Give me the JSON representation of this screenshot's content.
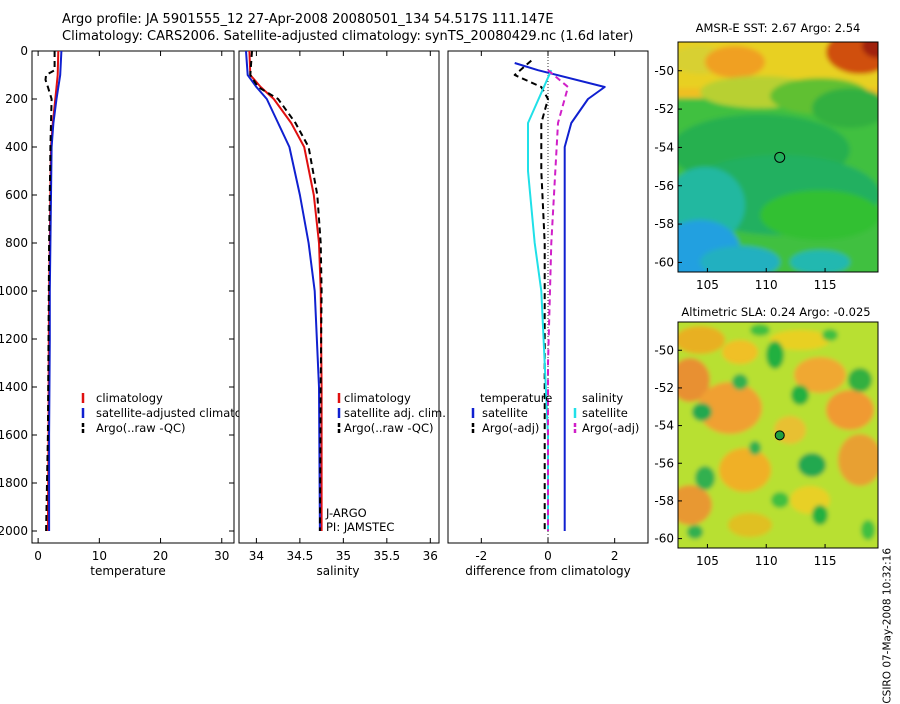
{
  "header": {
    "line1": "Argo profile: JA 5901555_12 27-Apr-2008 20080501_134 54.517S 111.147E",
    "line2": "Climatology: CARS2006. Satellite-adjusted climatology: synTS_20080429.nc (1.6d later)"
  },
  "footer_stamp": "CSIRO 07-May-2008 10:32:16",
  "colors": {
    "climatology": "#e01010",
    "satellite": "#1020d0",
    "argo": "#000000",
    "cyan": "#20e0e8",
    "magenta": "#d020c8"
  },
  "chart_data": [
    {
      "type": "line",
      "name": "temperature-profile",
      "xlabel": "temperature",
      "xlim": [
        -1,
        32
      ],
      "ylim": [
        2050,
        0
      ],
      "xticks": [
        0,
        10,
        20,
        30
      ],
      "yticks": [
        0,
        200,
        400,
        600,
        800,
        1000,
        1200,
        1400,
        1600,
        1800,
        2000
      ],
      "legend": [
        "climatology",
        "satellite-adjusted climatology",
        "Argo(..raw -QC)"
      ],
      "series": [
        {
          "name": "climatology",
          "color": "#e01010",
          "dash": "",
          "x": [
            3.3,
            3.2,
            2.8,
            2.4,
            2.1,
            2.0,
            1.9,
            1.8,
            1.75,
            1.7,
            1.6
          ],
          "y": [
            0,
            100,
            200,
            300,
            400,
            600,
            800,
            1000,
            1200,
            1600,
            2000
          ]
        },
        {
          "name": "satellite-adjusted climatology",
          "color": "#1020d0",
          "dash": "",
          "x": [
            3.8,
            3.6,
            3.0,
            2.5,
            2.2,
            2.1,
            2.0,
            1.9,
            1.9,
            1.8,
            1.8
          ],
          "y": [
            0,
            100,
            200,
            300,
            400,
            600,
            800,
            1000,
            1200,
            1600,
            2000
          ]
        },
        {
          "name": "Argo(..raw -QC)",
          "color": "#000000",
          "dash": "6,4",
          "x": [
            2.7,
            2.7,
            1.3,
            1.2,
            1.6,
            2.2,
            2.1,
            2.0,
            1.9,
            1.8,
            1.7,
            1.6,
            1.3
          ],
          "y": [
            0,
            80,
            100,
            120,
            150,
            200,
            300,
            400,
            600,
            800,
            1200,
            1600,
            2000
          ]
        }
      ]
    },
    {
      "type": "line",
      "name": "salinity-profile",
      "xlabel": "salinity",
      "xlim": [
        33.8,
        36.1
      ],
      "ylim": [
        2050,
        0
      ],
      "xticks": [
        34,
        34.5,
        35,
        35.5,
        36
      ],
      "xticklabels": [
        "34",
        "34.5",
        "35",
        "35.5",
        "36"
      ],
      "legend": [
        "climatology",
        "satellite adj. clim.",
        "Argo(..raw -QC)"
      ],
      "annotations": [
        "J-ARGO",
        "PI: JAMSTEC"
      ],
      "series": [
        {
          "name": "climatology",
          "color": "#e01010",
          "dash": "",
          "x": [
            33.92,
            33.93,
            34.05,
            34.2,
            34.4,
            34.55,
            34.66,
            34.72,
            34.74,
            34.75,
            34.75
          ],
          "y": [
            0,
            100,
            150,
            200,
            300,
            400,
            600,
            800,
            1000,
            1400,
            2000
          ]
        },
        {
          "name": "satellite adj. clim.",
          "color": "#1020d0",
          "dash": "",
          "x": [
            33.88,
            33.9,
            34.0,
            34.12,
            34.25,
            34.38,
            34.5,
            34.6,
            34.67,
            34.72,
            34.73
          ],
          "y": [
            0,
            100,
            150,
            200,
            300,
            400,
            600,
            800,
            1000,
            1400,
            2000
          ]
        },
        {
          "name": "Argo(..raw -QC)",
          "color": "#000000",
          "dash": "6,4",
          "x": [
            33.95,
            33.93,
            34.02,
            34.25,
            34.45,
            34.6,
            34.7,
            34.74,
            34.75,
            34.74,
            34.73
          ],
          "y": [
            0,
            100,
            150,
            200,
            300,
            400,
            600,
            800,
            1000,
            1400,
            2000
          ]
        }
      ]
    },
    {
      "type": "line",
      "name": "difference-profile",
      "xlabel": "difference from climatology",
      "xlim": [
        -3,
        3
      ],
      "ylim": [
        2050,
        0
      ],
      "xticks": [
        -2,
        0,
        2
      ],
      "legend_temperature_title": "temperature",
      "legend_salinity_title": "salinity",
      "legend": [
        "satellite",
        "Argo(-adj)",
        "satellite",
        "Argo(-adj)"
      ],
      "series": [
        {
          "name": "temperature satellite",
          "color": "#1020d0",
          "dash": "",
          "x": [
            -1.0,
            -0.3,
            1.7,
            1.2,
            0.7,
            0.5,
            0.5,
            0.5,
            0.5,
            0.5
          ],
          "y": [
            50,
            80,
            150,
            200,
            300,
            400,
            700,
            1000,
            1500,
            2000
          ]
        },
        {
          "name": "temperature Argo(-adj)",
          "color": "#000000",
          "dash": "6,4",
          "x": [
            -0.5,
            -1.0,
            -0.2,
            0.0,
            -0.2,
            -0.2,
            -0.1,
            -0.1,
            -0.1
          ],
          "y": [
            40,
            100,
            150,
            200,
            300,
            500,
            800,
            1200,
            2000
          ]
        },
        {
          "name": "salinity satellite",
          "color": "#20e0e8",
          "dash": "",
          "x": [
            0.1,
            -0.6,
            -0.6,
            -0.4,
            -0.2,
            -0.1,
            0.0,
            0.0
          ],
          "y": [
            80,
            300,
            500,
            800,
            1000,
            1300,
            1600,
            2000
          ]
        },
        {
          "name": "salinity Argo(-adj)",
          "color": "#d020c8",
          "dash": "6,4",
          "x": [
            0.0,
            0.6,
            0.3,
            0.1,
            0.0,
            0.0
          ],
          "y": [
            80,
            150,
            300,
            800,
            1300,
            2000
          ]
        }
      ]
    },
    {
      "type": "heatmap",
      "name": "amsre-sst-map",
      "title": "AMSR-E SST: 2.67 Argo: 2.54",
      "xlim": [
        102.5,
        119.5
      ],
      "ylim": [
        -60.5,
        -48.5
      ],
      "xticks": [
        105,
        110,
        115
      ],
      "yticks": [
        -50,
        -52,
        -54,
        -56,
        -58,
        -60
      ],
      "marker": {
        "lon": 111.147,
        "lat": -54.517
      }
    },
    {
      "type": "heatmap",
      "name": "altimetric-sla-map",
      "title": "Altimetric SLA: 0.24 Argo: -0.025",
      "xlim": [
        102.5,
        119.5
      ],
      "ylim": [
        -60.5,
        -48.5
      ],
      "xticks": [
        105,
        110,
        115
      ],
      "yticks": [
        -50,
        -52,
        -54,
        -56,
        -58,
        -60
      ],
      "marker": {
        "lon": 111.147,
        "lat": -54.517
      }
    }
  ]
}
